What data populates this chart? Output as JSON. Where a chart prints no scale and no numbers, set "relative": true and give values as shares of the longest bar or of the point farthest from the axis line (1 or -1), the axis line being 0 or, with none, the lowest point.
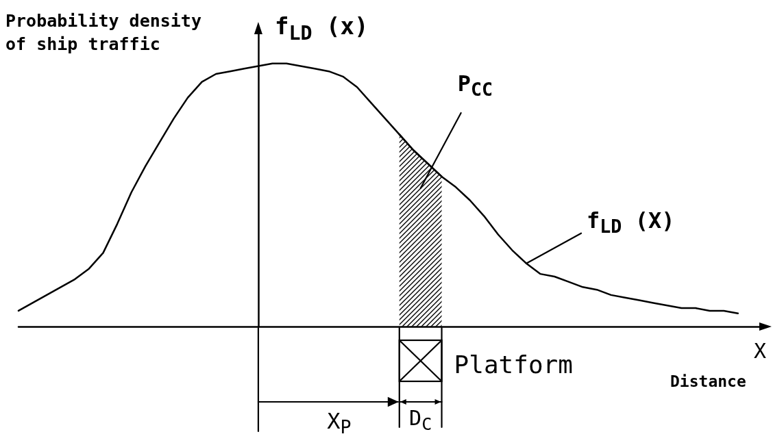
{
  "chart_data": {
    "type": "line",
    "relative": true,
    "marker": "none",
    "xlabel": "X",
    "ylabel": "f$_{LD}$ (x)",
    "annotations": [
      "Probability density of ship traffic",
      "Distance",
      "Platform",
      "X$_{P}$",
      "D$_{C}$"
    ],
    "categories": [
      null,
      null,
      null,
      null,
      null,
      null,
      null,
      null,
      null,
      null,
      null,
      null,
      null,
      null,
      null,
      null,
      null,
      null,
      null,
      null,
      null,
      null,
      null,
      null,
      null,
      null,
      null,
      null,
      null,
      null,
      null,
      null,
      null,
      null,
      null,
      null,
      null,
      null,
      null,
      null,
      null,
      null,
      null,
      null,
      null,
      null,
      null,
      null,
      null,
      null,
      null,
      null
    ],
    "series": [
      {
        "name": "f$_{LD}$ (X)",
        "color": "#000000",
        "values": [
          0.06,
          0.09,
          0.12,
          0.15,
          0.18,
          0.22,
          0.28,
          0.39,
          0.51,
          0.61,
          0.7,
          0.79,
          0.87,
          0.93,
          0.96,
          0.97,
          0.98,
          0.99,
          1,
          1,
          0.99,
          0.98,
          0.97,
          0.95,
          0.91,
          0.85,
          0.79,
          0.73,
          0.67,
          0.62,
          0.57,
          0.53,
          0.48,
          0.42,
          0.35,
          0.29,
          0.24,
          0.2,
          0.19,
          0.17,
          0.15,
          0.14,
          0.12,
          0.11,
          0.1,
          0.09,
          0.08,
          0.07,
          0.07,
          0.06,
          0.06,
          0.05
        ]
      },
      {
        "type": "area",
        "name": "P$_{CC}$",
        "color": "#000000",
        "values": [
          null,
          null,
          null,
          null,
          null,
          null,
          null,
          null,
          null,
          null,
          null,
          null,
          null,
          null,
          null,
          null,
          null,
          null,
          null,
          null,
          null,
          null,
          null,
          null,
          null,
          null,
          null,
          0.73,
          0.67,
          0.62,
          0.57,
          null,
          null,
          null,
          null,
          null,
          null,
          null,
          null,
          null,
          null,
          null,
          null,
          null,
          null,
          null,
          null,
          null,
          null,
          null,
          null,
          null
        ]
      }
    ]
  }
}
